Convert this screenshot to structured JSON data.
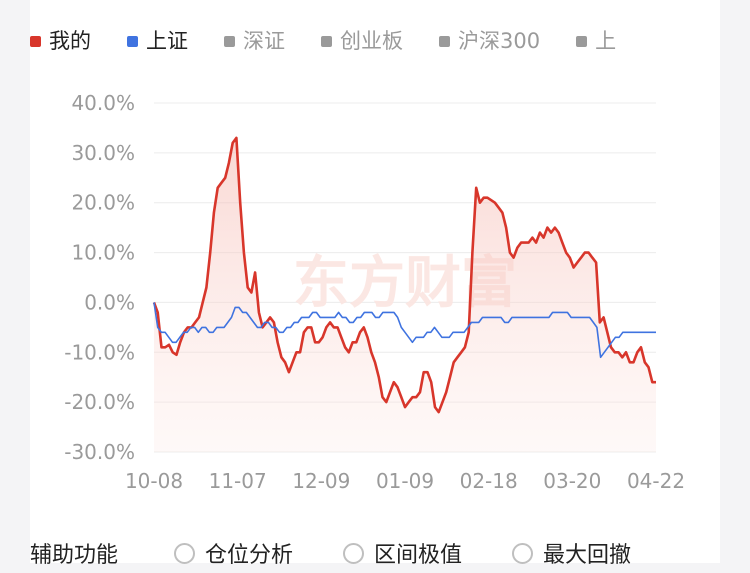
{
  "legend": [
    {
      "label": "我的",
      "color": "#d8362b",
      "active": true
    },
    {
      "label": "上证",
      "color": "#3f73e0",
      "active": true
    },
    {
      "label": "深证",
      "color": "#9a9a9a",
      "active": false
    },
    {
      "label": "创业板",
      "color": "#9a9a9a",
      "active": false
    },
    {
      "label": "沪深300",
      "color": "#9a9a9a",
      "active": false
    },
    {
      "label": "上",
      "color": "#9a9a9a",
      "active": false
    }
  ],
  "watermark": "东方财富",
  "aux": {
    "title": "辅助功能",
    "options": [
      "仓位分析",
      "区间极值",
      "最大回撤"
    ]
  },
  "chart_data": {
    "type": "line",
    "x_ticks": [
      "10-08",
      "11-07",
      "12-09",
      "01-09",
      "02-18",
      "03-20",
      "04-22"
    ],
    "y_ticks": [
      "40.0%",
      "30.0%",
      "20.0%",
      "10.0%",
      "0.0%",
      "-10.0%",
      "-20.0%",
      "-30.0%"
    ],
    "ylim": [
      -30,
      40
    ],
    "series": [
      {
        "name": "我的",
        "color": "#d8362b",
        "values": [
          0,
          -2,
          -9,
          -9,
          -8.5,
          -10,
          -10.5,
          -8,
          -6,
          -5,
          -5,
          -4,
          -3,
          0,
          3,
          10,
          18,
          23,
          24,
          25,
          28,
          32,
          33,
          20,
          10,
          3,
          2,
          6,
          -2,
          -5,
          -4,
          -3,
          -4,
          -8,
          -11,
          -12,
          -14,
          -12,
          -10,
          -10,
          -6,
          -5,
          -5,
          -8,
          -8,
          -7,
          -5,
          -4,
          -5,
          -5,
          -7,
          -9,
          -10,
          -8,
          -8,
          -6,
          -5,
          -7,
          -10,
          -12,
          -15,
          -19,
          -20,
          -18,
          -16,
          -17,
          -19,
          -21,
          -20,
          -19,
          -19,
          -18,
          -14,
          -14,
          -16,
          -21,
          -22,
          -20,
          -18,
          -15,
          -12,
          -11,
          -10,
          -9,
          -6,
          10,
          23,
          20,
          21,
          21,
          20.5,
          20,
          19,
          18,
          15,
          10,
          9,
          11,
          12,
          12,
          12,
          13,
          12,
          14,
          13,
          15,
          14,
          15,
          14,
          12,
          10,
          9,
          7,
          8,
          9,
          10,
          10,
          9,
          8,
          -4,
          -3,
          -6,
          -9,
          -10,
          -10,
          -11,
          -10,
          -12,
          -12,
          -10,
          -9,
          -12,
          -13,
          -16,
          -16
        ]
      },
      {
        "name": "上证",
        "color": "#3f73e0",
        "values": [
          0,
          -5,
          -6,
          -6,
          -7,
          -8,
          -8,
          -7,
          -6,
          -6,
          -5,
          -5,
          -6,
          -5,
          -5,
          -6,
          -6,
          -5,
          -5,
          -5,
          -4,
          -3,
          -1,
          -1,
          -2,
          -2,
          -3,
          -4,
          -5,
          -5,
          -4,
          -4,
          -5,
          -5,
          -6,
          -6,
          -5,
          -5,
          -4,
          -4,
          -3,
          -3,
          -3,
          -2,
          -2,
          -3,
          -3,
          -3,
          -3,
          -3,
          -2,
          -3,
          -3,
          -4,
          -4,
          -3,
          -3,
          -2,
          -2,
          -2,
          -3,
          -3,
          -2,
          -2,
          -2,
          -2,
          -3,
          -5,
          -6,
          -7,
          -8,
          -7,
          -7,
          -7,
          -6,
          -6,
          -5,
          -6,
          -7,
          -7,
          -7,
          -6,
          -6,
          -6,
          -6,
          -5,
          -4,
          -4,
          -4,
          -3,
          -3,
          -3,
          -3,
          -3,
          -3,
          -4,
          -4,
          -3,
          -3,
          -3,
          -3,
          -3,
          -3,
          -3,
          -3,
          -3,
          -3,
          -3,
          -2,
          -2,
          -2,
          -2,
          -2,
          -3,
          -3,
          -3,
          -3,
          -3,
          -3,
          -4,
          -5,
          -11,
          -10,
          -9,
          -8,
          -7,
          -7,
          -6,
          -6,
          -6,
          -6,
          -6,
          -6,
          -6,
          -6,
          -6,
          -6
        ]
      }
    ]
  }
}
